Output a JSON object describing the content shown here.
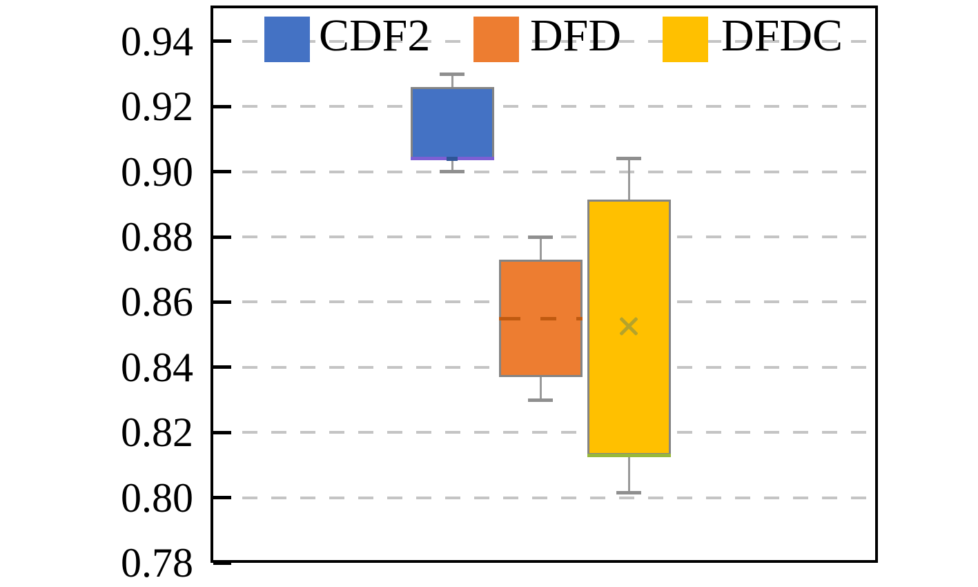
{
  "figure": {
    "background": "#ffffff",
    "legend": {
      "position": "top-inside",
      "items": [
        {
          "label": "CDF2",
          "swatch_color": "#4472C4"
        },
        {
          "label": "DFD",
          "swatch_color": "#ED7D31"
        },
        {
          "label": "DFDC",
          "swatch_color": "#FFC000"
        }
      ]
    }
  },
  "chart_data": {
    "type": "boxplot",
    "title": "",
    "xlabel": "",
    "ylabel": "",
    "categories": [
      "CDF2",
      "DFD",
      "DFDC"
    ],
    "series": [
      {
        "name": "CDF2",
        "fill_color": "#4472C4",
        "whisker_low": 0.9,
        "q1": 0.904,
        "median": 0.904,
        "q3": 0.926,
        "whisker_high": 0.93,
        "median_color": "#7D5FD3",
        "median_style": "solid",
        "mean": 0.904,
        "mean_marker": "dash",
        "mean_color": "#2F5597"
      },
      {
        "name": "DFD",
        "fill_color": "#ED7D31",
        "whisker_low": 0.83,
        "q1": 0.837,
        "median": 0.855,
        "q3": 0.873,
        "whisker_high": 0.88,
        "median_color": "#C05A10",
        "median_style": "dashed",
        "mean": null,
        "mean_marker": "none",
        "mean_color": "#C05A10"
      },
      {
        "name": "DFDC",
        "fill_color": "#FFC000",
        "whisker_low": 0.8015,
        "q1": 0.813,
        "median": 0.813,
        "q3": 0.8915,
        "whisker_high": 0.904,
        "median_color": "#97B83B",
        "median_style": "solid",
        "mean": 0.8525,
        "mean_marker": "x",
        "mean_color": "#B5A32B"
      }
    ],
    "ylim": [
      0.78,
      0.951
    ],
    "yticks": [
      0.78,
      0.8,
      0.82,
      0.84,
      0.86,
      0.88,
      0.9,
      0.92,
      0.94
    ],
    "ytick_labels": [
      "0.78",
      "0.80",
      "0.82",
      "0.84",
      "0.86",
      "0.88",
      "0.90",
      "0.92",
      "0.94"
    ],
    "grid": "horizontal-dashed",
    "grid_color": "#c4c4c4",
    "axis_color": "#000000",
    "box_border_color": "#848484",
    "whisker_color": "#9a9a9a",
    "legend_position": "top inside, no frame"
  }
}
